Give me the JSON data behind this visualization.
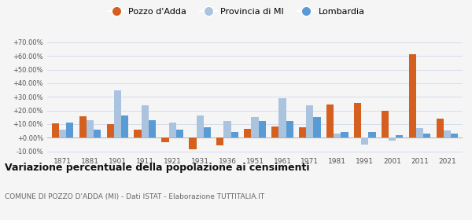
{
  "years": [
    1871,
    1881,
    1901,
    1911,
    1921,
    1931,
    1936,
    1951,
    1961,
    1971,
    1981,
    1991,
    2001,
    2011,
    2021
  ],
  "pozzo": [
    10.5,
    15.5,
    10.0,
    6.0,
    -3.5,
    -8.5,
    -5.5,
    6.5,
    8.0,
    7.5,
    24.5,
    25.5,
    20.0,
    61.0,
    14.0
  ],
  "provincia": [
    6.0,
    13.0,
    35.0,
    24.0,
    11.0,
    16.0,
    12.0,
    15.0,
    29.0,
    24.0,
    3.0,
    -5.0,
    -2.0,
    7.0,
    5.5
  ],
  "lombardia": [
    11.0,
    6.0,
    16.0,
    13.0,
    6.0,
    7.5,
    4.0,
    12.5,
    12.0,
    15.0,
    4.0,
    4.0,
    2.0,
    3.0,
    3.0
  ],
  "color_pozzo": "#d45f1e",
  "color_provincia": "#aac4e0",
  "color_lombardia": "#5b9bd5",
  "title": "Variazione percentuale della popolazione ai censimenti",
  "subtitle": "COMUNE DI POZZO D'ADDA (MI) - Dati ISTAT - Elaborazione TUTTITALIA.IT",
  "legend_labels": [
    "Pozzo d'Adda",
    "Provincia di MI",
    "Lombardia"
  ],
  "ylim": [
    -12,
    72
  ],
  "yticks": [
    -10,
    0,
    10,
    20,
    30,
    40,
    50,
    60,
    70
  ],
  "background_color": "#f5f5f5",
  "grid_color": "#d0d8e8"
}
